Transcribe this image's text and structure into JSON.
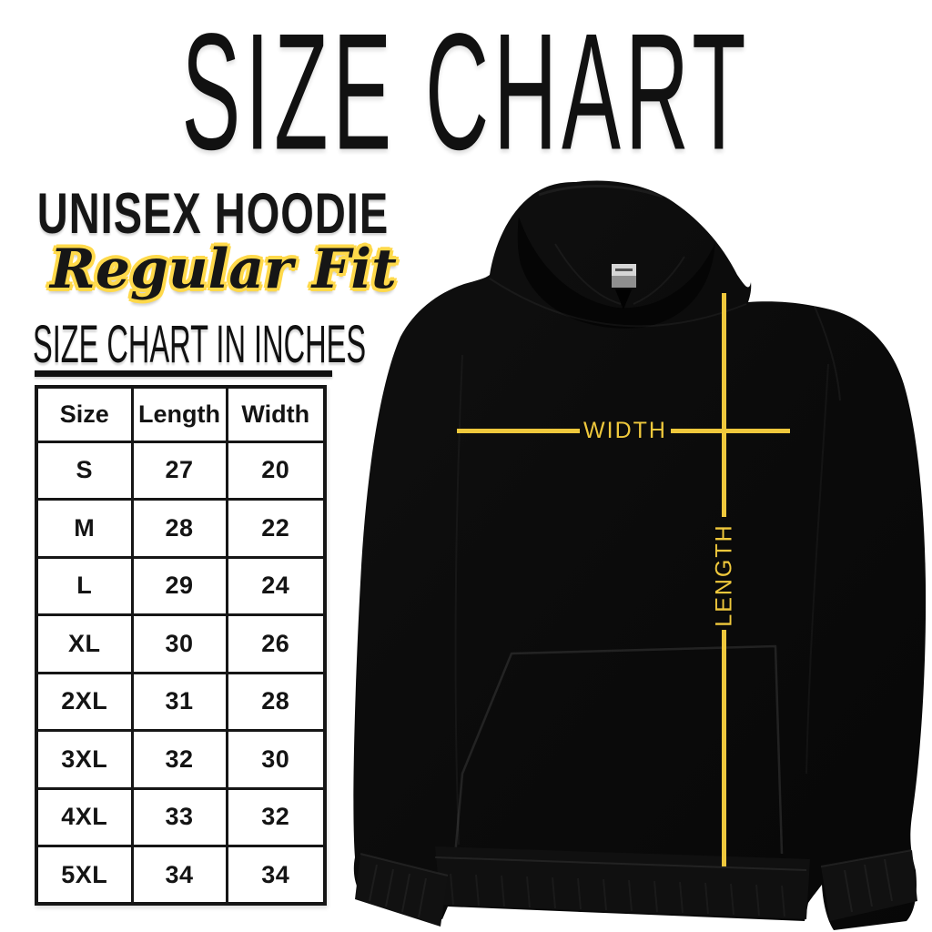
{
  "page": {
    "bg": "#ffffff",
    "text_color": "#141414"
  },
  "header": {
    "title": "SIZE CHART"
  },
  "product": {
    "name": "UNISEX HOODIE",
    "fit": "Regular Fit"
  },
  "table_section": {
    "heading": "SIZE CHART IN INCHES"
  },
  "size_table": {
    "columns": [
      "Size",
      "Length",
      "Width"
    ],
    "rows": [
      [
        "S",
        "27",
        "20"
      ],
      [
        "M",
        "28",
        "22"
      ],
      [
        "L",
        "29",
        "24"
      ],
      [
        "XL",
        "30",
        "26"
      ],
      [
        "2XL",
        "31",
        "28"
      ],
      [
        "3XL",
        "32",
        "30"
      ],
      [
        "4XL",
        "33",
        "32"
      ],
      [
        "5XL",
        "34",
        "34"
      ]
    ]
  },
  "diagram": {
    "width_label": "WIDTH",
    "length_label": "LENGTH",
    "line_color": "#EFC83C",
    "fit_outline_color": "#FFD94A",
    "garment": "black pullover hoodie, front view"
  },
  "chart_data": {
    "type": "table",
    "title": "SIZE CHART IN INCHES",
    "units": "inches",
    "columns": [
      "Size",
      "Length",
      "Width"
    ],
    "rows": [
      [
        "S",
        27,
        20
      ],
      [
        "M",
        28,
        22
      ],
      [
        "L",
        29,
        24
      ],
      [
        "XL",
        30,
        26
      ],
      [
        "2XL",
        31,
        28
      ],
      [
        "3XL",
        32,
        30
      ],
      [
        "4XL",
        33,
        32
      ],
      [
        "5XL",
        34,
        34
      ]
    ]
  }
}
